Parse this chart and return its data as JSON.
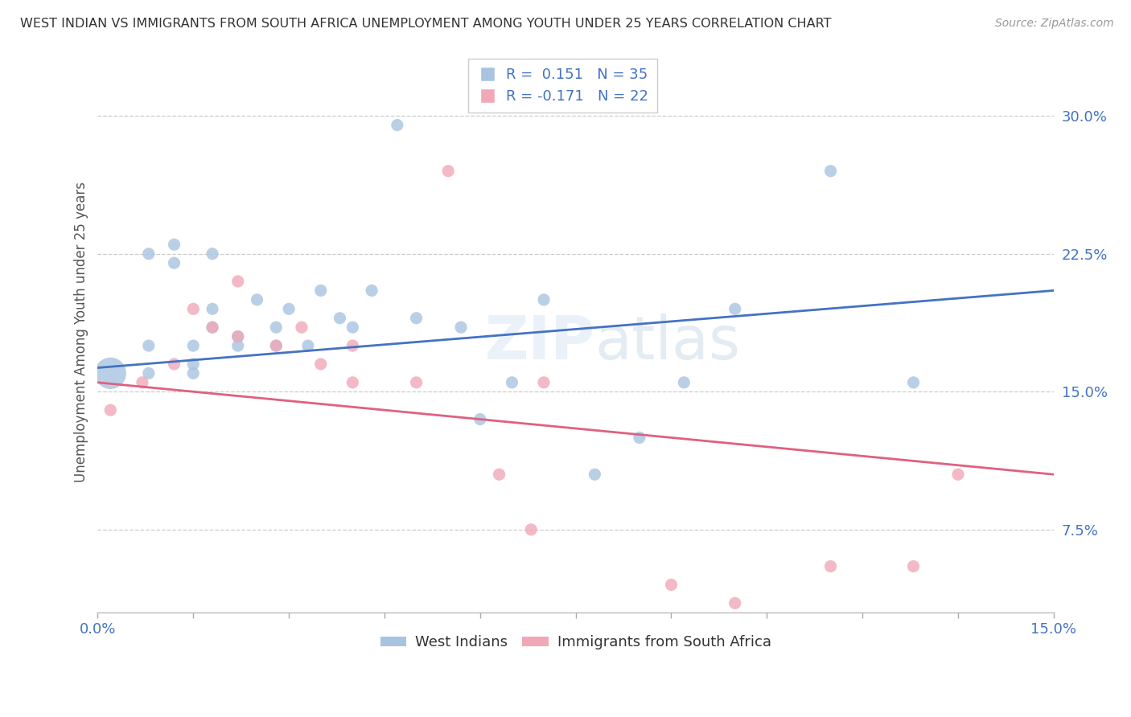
{
  "title": "WEST INDIAN VS IMMIGRANTS FROM SOUTH AFRICA UNEMPLOYMENT AMONG YOUTH UNDER 25 YEARS CORRELATION CHART",
  "source": "Source: ZipAtlas.com",
  "ylabel": "Unemployment Among Youth under 25 years",
  "x_tick_labels_left": "0.0%",
  "x_tick_labels_right": "15.0%",
  "y_tick_labels": [
    "7.5%",
    "15.0%",
    "22.5%",
    "30.0%"
  ],
  "y_ticks": [
    0.075,
    0.15,
    0.225,
    0.3
  ],
  "xlim": [
    0.0,
    0.15
  ],
  "ylim": [
    0.03,
    0.335
  ],
  "blue_color": "#a8c4e0",
  "pink_color": "#f0a8b8",
  "line_blue": "#4472c4",
  "line_pink": "#e06080",
  "text_color": "#4472c4",
  "background_color": "#ffffff",
  "west_indians_x": [
    0.002,
    0.008,
    0.008,
    0.008,
    0.012,
    0.012,
    0.015,
    0.015,
    0.015,
    0.018,
    0.018,
    0.018,
    0.022,
    0.022,
    0.025,
    0.028,
    0.028,
    0.03,
    0.033,
    0.035,
    0.038,
    0.04,
    0.043,
    0.047,
    0.05,
    0.057,
    0.06,
    0.065,
    0.07,
    0.078,
    0.085,
    0.092,
    0.1,
    0.115,
    0.128
  ],
  "west_indians_y": [
    0.16,
    0.175,
    0.225,
    0.16,
    0.23,
    0.22,
    0.175,
    0.165,
    0.16,
    0.225,
    0.195,
    0.185,
    0.175,
    0.18,
    0.2,
    0.185,
    0.175,
    0.195,
    0.175,
    0.205,
    0.19,
    0.185,
    0.205,
    0.295,
    0.19,
    0.185,
    0.135,
    0.155,
    0.2,
    0.105,
    0.125,
    0.155,
    0.195,
    0.27,
    0.155
  ],
  "west_indians_size": [
    800,
    120,
    120,
    120,
    120,
    120,
    120,
    120,
    120,
    120,
    120,
    120,
    120,
    120,
    120,
    120,
    120,
    120,
    120,
    120,
    120,
    120,
    120,
    120,
    120,
    120,
    120,
    120,
    120,
    120,
    120,
    120,
    120,
    120,
    120
  ],
  "south_africa_x": [
    0.002,
    0.007,
    0.012,
    0.015,
    0.018,
    0.022,
    0.022,
    0.028,
    0.032,
    0.035,
    0.04,
    0.04,
    0.05,
    0.055,
    0.063,
    0.068,
    0.07,
    0.09,
    0.1,
    0.115,
    0.128,
    0.135
  ],
  "south_africa_y": [
    0.14,
    0.155,
    0.165,
    0.195,
    0.185,
    0.21,
    0.18,
    0.175,
    0.185,
    0.165,
    0.155,
    0.175,
    0.155,
    0.27,
    0.105,
    0.075,
    0.155,
    0.045,
    0.035,
    0.055,
    0.055,
    0.105
  ],
  "south_africa_size": [
    120,
    120,
    120,
    120,
    120,
    120,
    120,
    120,
    120,
    120,
    120,
    120,
    120,
    120,
    120,
    120,
    120,
    120,
    120,
    120,
    120,
    120
  ],
  "line_blue_x0": 0.0,
  "line_blue_y0": 0.163,
  "line_blue_x1": 0.15,
  "line_blue_y1": 0.205,
  "line_pink_x0": 0.0,
  "line_pink_y0": 0.155,
  "line_pink_x1": 0.15,
  "line_pink_y1": 0.105
}
